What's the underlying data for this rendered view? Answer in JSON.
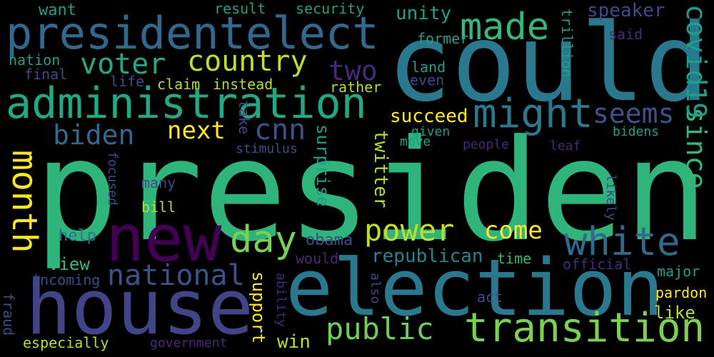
{
  "background": "#000000",
  "words": [
    {
      "text": "president",
      "color": "#2fb47c"
    },
    {
      "text": "could",
      "color": "#2a788e"
    },
    {
      "text": "house",
      "color": "#414487"
    },
    {
      "text": "election",
      "color": "#2a788e"
    },
    {
      "text": "new",
      "color": "#440154"
    },
    {
      "text": "presidentelect",
      "color": "#31688e"
    },
    {
      "text": "administration",
      "color": "#22a884"
    },
    {
      "text": "transition",
      "color": "#7ad151"
    },
    {
      "text": "made",
      "color": "#35b779"
    },
    {
      "text": "might",
      "color": "#2a788e"
    },
    {
      "text": "white",
      "color": "#31688e"
    },
    {
      "text": "power",
      "color": "#bddf26"
    },
    {
      "text": "day",
      "color": "#7ad151"
    },
    {
      "text": "month",
      "color": "#fde725"
    },
    {
      "text": "public",
      "color": "#6ece58"
    },
    {
      "text": "national",
      "color": "#3b528b"
    },
    {
      "text": "voter",
      "color": "#22a884"
    },
    {
      "text": "country",
      "color": "#bddf26"
    },
    {
      "text": "biden",
      "color": "#31688e"
    },
    {
      "text": "cnn",
      "color": "#3b528b"
    },
    {
      "text": "next",
      "color": "#fde725"
    },
    {
      "text": "come",
      "color": "#fde725"
    },
    {
      "text": "seems",
      "color": "#3b528b"
    },
    {
      "text": "two",
      "color": "#482878"
    },
    {
      "text": "since",
      "color": "#35b779"
    },
    {
      "text": "covid19",
      "color": "#1f9e89"
    },
    {
      "text": "unity",
      "color": "#1f9e89"
    },
    {
      "text": "speaker",
      "color": "#3e4a89"
    },
    {
      "text": "republican",
      "color": "#26828e"
    },
    {
      "text": "succeed",
      "color": "#fde725"
    },
    {
      "text": "twitter",
      "color": "#b5de2b"
    },
    {
      "text": "surprise",
      "color": "#1f9e89"
    },
    {
      "text": "support",
      "color": "#fde725"
    },
    {
      "text": "win",
      "color": "#bddf26"
    },
    {
      "text": "like",
      "color": "#b5de2b"
    },
    {
      "text": "help",
      "color": "#2a788e"
    },
    {
      "text": "view",
      "color": "#35b779"
    },
    {
      "text": "nation",
      "color": "#1f9e89"
    },
    {
      "text": "want",
      "color": "#1f9e89"
    },
    {
      "text": "final",
      "color": "#3e4a89"
    },
    {
      "text": "result",
      "color": "#1f9e89"
    },
    {
      "text": "security",
      "color": "#1f9e89"
    },
    {
      "text": "former",
      "color": "#1f9e89"
    },
    {
      "text": "said",
      "color": "#482878"
    },
    {
      "text": "trillion",
      "color": "#1f9e89"
    },
    {
      "text": "land",
      "color": "#1f9e89"
    },
    {
      "text": "even",
      "color": "#3e4a89"
    },
    {
      "text": "rather",
      "color": "#b5de2b"
    },
    {
      "text": "life",
      "color": "#3e4a89"
    },
    {
      "text": "claim",
      "color": "#b5de2b"
    },
    {
      "text": "instead",
      "color": "#b5de2b"
    },
    {
      "text": "take",
      "color": "#3e4a89"
    },
    {
      "text": "stimulus",
      "color": "#3e4a89"
    },
    {
      "text": "given",
      "color": "#1f9e89"
    },
    {
      "text": "move",
      "color": "#1f9e89"
    },
    {
      "text": "people",
      "color": "#482878"
    },
    {
      "text": "leaf",
      "color": "#482878"
    },
    {
      "text": "bidens",
      "color": "#1f9e89"
    },
    {
      "text": "focused",
      "color": "#3e4a89"
    },
    {
      "text": "many",
      "color": "#3e4a89"
    },
    {
      "text": "bill",
      "color": "#b5de2b"
    },
    {
      "text": "likely",
      "color": "#3e4a89"
    },
    {
      "text": "obama",
      "color": "#3e4a89"
    },
    {
      "text": "would",
      "color": "#482878"
    },
    {
      "text": "time",
      "color": "#35b779"
    },
    {
      "text": "official",
      "color": "#482878"
    },
    {
      "text": "major",
      "color": "#1f9e89"
    },
    {
      "text": "incoming",
      "color": "#3e4a89"
    },
    {
      "text": "ability",
      "color": "#482878"
    },
    {
      "text": "also",
      "color": "#3e4a89"
    },
    {
      "text": "act",
      "color": "#3e4a89"
    },
    {
      "text": "pardon",
      "color": "#fde725"
    },
    {
      "text": "fraud",
      "color": "#3e4a89"
    },
    {
      "text": "especially",
      "color": "#b5de2b"
    },
    {
      "text": "government",
      "color": "#482878"
    }
  ]
}
